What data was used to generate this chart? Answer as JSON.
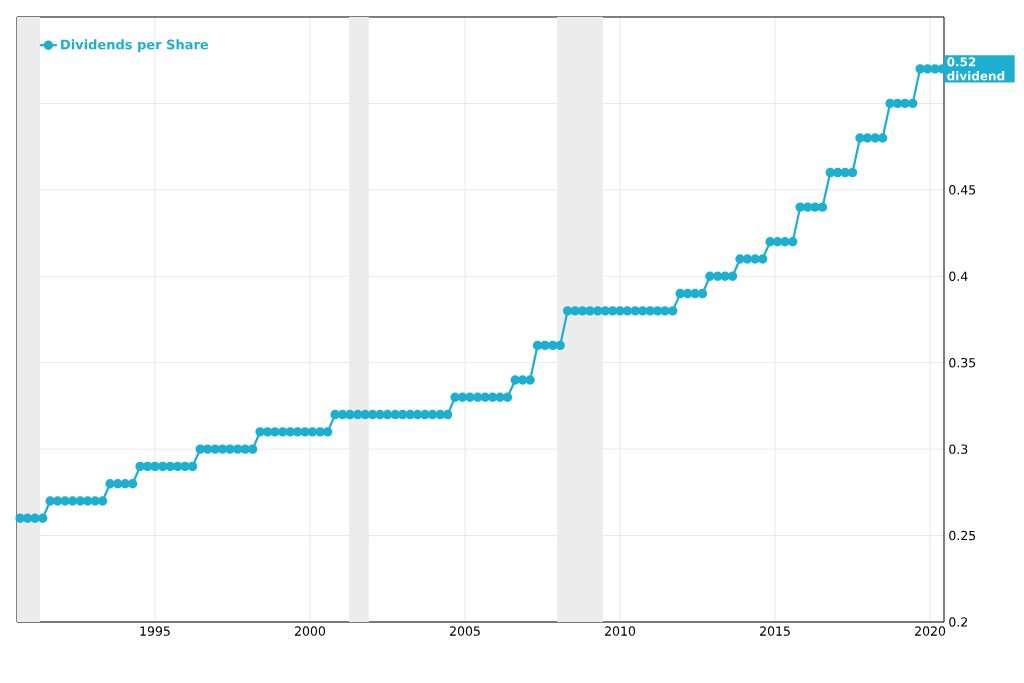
{
  "chart_data": {
    "type": "line",
    "x": [
      1990.65,
      1990.89,
      1991.13,
      1991.38,
      1991.62,
      1991.86,
      1992.1,
      1992.34,
      1992.59,
      1992.83,
      1993.07,
      1993.31,
      1993.55,
      1993.8,
      1994.04,
      1994.28,
      1994.52,
      1994.76,
      1995.0,
      1995.25,
      1995.49,
      1995.73,
      1995.97,
      1996.21,
      1996.46,
      1996.7,
      1996.94,
      1997.18,
      1997.42,
      1997.67,
      1997.91,
      1998.15,
      1998.39,
      1998.63,
      1998.87,
      1999.12,
      1999.36,
      1999.6,
      1999.84,
      2000.08,
      2000.33,
      2000.57,
      2000.81,
      2001.05,
      2001.29,
      2001.54,
      2001.78,
      2002.02,
      2002.26,
      2002.5,
      2002.75,
      2002.99,
      2003.23,
      2003.47,
      2003.71,
      2003.95,
      2004.2,
      2004.44,
      2004.68,
      2004.92,
      2005.16,
      2005.41,
      2005.65,
      2005.89,
      2006.13,
      2006.37,
      2006.62,
      2006.86,
      2007.1,
      2007.34,
      2007.58,
      2007.83,
      2008.07,
      2008.31,
      2008.55,
      2008.79,
      2009.03,
      2009.28,
      2009.52,
      2009.76,
      2010.0,
      2010.24,
      2010.49,
      2010.73,
      2010.97,
      2011.21,
      2011.45,
      2011.7,
      2011.94,
      2012.18,
      2012.42,
      2012.66,
      2012.9,
      2013.15,
      2013.39,
      2013.63,
      2013.87,
      2014.11,
      2014.36,
      2014.6,
      2014.84,
      2015.08,
      2015.32,
      2015.57,
      2015.81,
      2016.05,
      2016.29,
      2016.53,
      2016.78,
      2017.02,
      2017.26,
      2017.5,
      2017.74,
      2017.98,
      2018.23,
      2018.47,
      2018.71,
      2018.95,
      2019.19,
      2019.44,
      2019.68,
      2019.92,
      2020.16,
      2020.4
    ],
    "series": [
      {
        "name": "Dividends per Share",
        "color": "#1cafd0",
        "values": [
          0.26,
          0.26,
          0.26,
          0.26,
          0.27,
          0.27,
          0.27,
          0.27,
          0.27,
          0.27,
          0.27,
          0.27,
          0.28,
          0.28,
          0.28,
          0.28,
          0.29,
          0.29,
          0.29,
          0.29,
          0.29,
          0.29,
          0.29,
          0.29,
          0.3,
          0.3,
          0.3,
          0.3,
          0.3,
          0.3,
          0.3,
          0.3,
          0.31,
          0.31,
          0.31,
          0.31,
          0.31,
          0.31,
          0.31,
          0.31,
          0.31,
          0.31,
          0.32,
          0.32,
          0.32,
          0.32,
          0.32,
          0.32,
          0.32,
          0.32,
          0.32,
          0.32,
          0.32,
          0.32,
          0.32,
          0.32,
          0.32,
          0.32,
          0.33,
          0.33,
          0.33,
          0.33,
          0.33,
          0.33,
          0.33,
          0.33,
          0.34,
          0.34,
          0.34,
          0.36,
          0.36,
          0.36,
          0.36,
          0.38,
          0.38,
          0.38,
          0.38,
          0.38,
          0.38,
          0.38,
          0.38,
          0.38,
          0.38,
          0.38,
          0.38,
          0.38,
          0.38,
          0.38,
          0.39,
          0.39,
          0.39,
          0.39,
          0.4,
          0.4,
          0.4,
          0.4,
          0.41,
          0.41,
          0.41,
          0.41,
          0.42,
          0.42,
          0.42,
          0.42,
          0.44,
          0.44,
          0.44,
          0.44,
          0.46,
          0.46,
          0.46,
          0.46,
          0.48,
          0.48,
          0.48,
          0.48,
          0.5,
          0.5,
          0.5,
          0.5,
          0.52,
          0.52,
          0.52,
          0.52
        ]
      }
    ],
    "xlim": [
      1990.55,
      2020.45
    ],
    "ylim": [
      0.2,
      0.55
    ],
    "xticks": [
      1995,
      2000,
      2005,
      2010,
      2015,
      2020
    ],
    "yticks": [
      0.2,
      0.25,
      0.3,
      0.35,
      0.4,
      0.45,
      {
        "value": 0.5,
        "label": null
      }
    ],
    "bands": [
      {
        "axis": "x",
        "from": 1990.55,
        "to": 1991.29,
        "color": "#ececec"
      },
      {
        "axis": "x",
        "from": 2001.26,
        "to": 2001.9,
        "color": "#ececec"
      },
      {
        "axis": "x",
        "from": 2007.97,
        "to": 2009.45,
        "color": "#ececec"
      }
    ],
    "annotations": [
      {
        "text": "0.52 dividend",
        "x": 2020.4,
        "y": 0.52
      }
    ],
    "grid": true,
    "legend": "top left",
    "marker": "circle",
    "line_style": "solid"
  }
}
